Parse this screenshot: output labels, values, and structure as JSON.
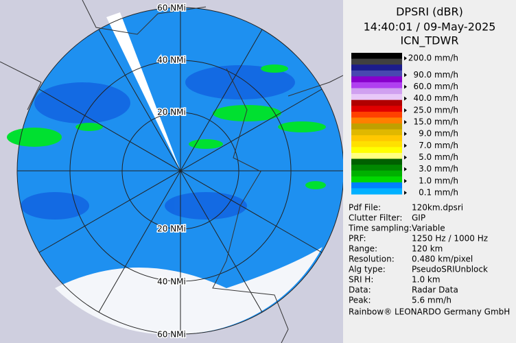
{
  "header": {
    "title": "DPSRI (dBR)",
    "time": "14:40:01 / 09-May-2025",
    "site": "ICN_TDWR"
  },
  "map": {
    "ring_labels_top": [
      "60 NMi",
      "40 NMi",
      "20 NMi"
    ],
    "ring_labels_bottom": [
      "20 NMi",
      "40 NMi",
      "60 NMi"
    ]
  },
  "legend": [
    {
      "label": "200.0 mm/h",
      "colors": [
        "#000000",
        "#404040"
      ]
    },
    {
      "label": "90.0 mm/h",
      "colors": [
        "#1c1c8c",
        "#4848b0"
      ]
    },
    {
      "label": "60.0 mm/h",
      "colors": [
        "#8800cc",
        "#b040f0"
      ]
    },
    {
      "label": "40.0 mm/h",
      "colors": [
        "#d0a0f0",
        "#e8c8f8"
      ]
    },
    {
      "label": "25.0 mm/h",
      "colors": [
        "#b00000",
        "#e00000"
      ]
    },
    {
      "label": "15.0 mm/h",
      "colors": [
        "#ff4000",
        "#ff8000"
      ]
    },
    {
      "label": "9.0 mm/h",
      "colors": [
        "#c0a000",
        "#e0b800"
      ]
    },
    {
      "label": "7.0 mm/h",
      "colors": [
        "#ffc800",
        "#ffe000"
      ]
    },
    {
      "label": "5.0 mm/h",
      "colors": [
        "#ffff00",
        "#ffff80"
      ]
    },
    {
      "label": "3.0 mm/h",
      "colors": [
        "#006000",
        "#008800"
      ]
    },
    {
      "label": "1.0 mm/h",
      "colors": [
        "#00b000",
        "#00d800"
      ]
    },
    {
      "label": "0.1 mm/h",
      "colors": [
        "#0080ff",
        "#00b0ff"
      ]
    }
  ],
  "info": [
    [
      "Pdf File:",
      "120km.dpsri"
    ],
    [
      "Clutter Filter:",
      "GIP"
    ],
    [
      "Time sampling:",
      "Variable"
    ],
    [
      "PRF:",
      "1250 Hz / 1000 Hz"
    ],
    [
      "Range:",
      "120 km"
    ],
    [
      "Resolution:",
      "0.480 km/pixel"
    ],
    [
      "Alg type:",
      "PseudoSRIUnblock"
    ],
    [
      "SRI H:",
      "1.0 km"
    ],
    [
      "Data:",
      "Radar Data"
    ],
    [
      "Peak:",
      "5.6 mm/h"
    ]
  ],
  "footer": "Rainbow® LEONARDO Germany GmbH"
}
